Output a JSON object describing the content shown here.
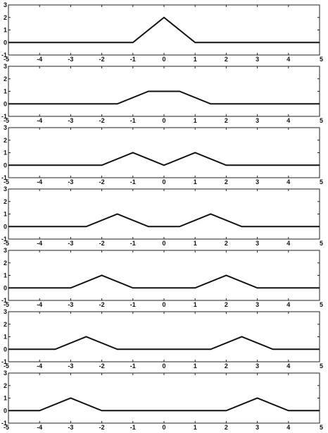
{
  "chart_data": [
    {
      "type": "line",
      "title": "",
      "xlabel": "",
      "ylabel": "",
      "xlim": [
        -5,
        5
      ],
      "ylim": [
        -1,
        3
      ],
      "x_ticks": [
        "-5",
        "-4",
        "-3",
        "-2",
        "-1",
        "0",
        "1",
        "2",
        "3",
        "4",
        "5"
      ],
      "y_ticks": [
        "-1",
        "0",
        "1",
        "2",
        "3"
      ],
      "grid": false,
      "series": [
        {
          "x": [
            -5,
            -1,
            0,
            1,
            5
          ],
          "y": [
            0,
            0,
            2,
            0,
            0
          ]
        }
      ]
    },
    {
      "type": "line",
      "title": "",
      "xlabel": "",
      "ylabel": "",
      "xlim": [
        -5,
        5
      ],
      "ylim": [
        -1,
        3
      ],
      "x_ticks": [
        "-5",
        "-4",
        "-3",
        "-2",
        "-1",
        "0",
        "1",
        "2",
        "3",
        "4",
        "5"
      ],
      "y_ticks": [
        "-1",
        "0",
        "1",
        "2",
        "3"
      ],
      "grid": false,
      "series": [
        {
          "x": [
            -5,
            -1.5,
            -0.5,
            0.5,
            1.5,
            5
          ],
          "y": [
            0,
            0,
            1,
            1,
            0,
            0
          ]
        }
      ]
    },
    {
      "type": "line",
      "title": "",
      "xlabel": "",
      "ylabel": "",
      "xlim": [
        -5,
        5
      ],
      "ylim": [
        -1,
        3
      ],
      "x_ticks": [
        "-5",
        "-4",
        "-3",
        "-2",
        "-1",
        "0",
        "1",
        "2",
        "3",
        "4",
        "5"
      ],
      "y_ticks": [
        "-1",
        "0",
        "1",
        "2",
        "3"
      ],
      "grid": false,
      "series": [
        {
          "x": [
            -5,
            -2,
            -1,
            0,
            1,
            2,
            5
          ],
          "y": [
            0,
            0,
            1,
            0,
            1,
            0,
            0
          ]
        }
      ]
    },
    {
      "type": "line",
      "title": "",
      "xlabel": "",
      "ylabel": "",
      "xlim": [
        -5,
        5
      ],
      "ylim": [
        -1,
        3
      ],
      "x_ticks": [
        "-5",
        "-4",
        "-3",
        "-2",
        "-1",
        "0",
        "1",
        "2",
        "3",
        "4",
        "5"
      ],
      "y_ticks": [
        "-1",
        "0",
        "1",
        "2",
        "3"
      ],
      "grid": false,
      "series": [
        {
          "x": [
            -5,
            -2.5,
            -1.5,
            -0.5,
            0.5,
            1.5,
            2.5,
            5
          ],
          "y": [
            0,
            0,
            1,
            0,
            0,
            1,
            0,
            0
          ]
        }
      ]
    },
    {
      "type": "line",
      "title": "",
      "xlabel": "",
      "ylabel": "",
      "xlim": [
        -5,
        5
      ],
      "ylim": [
        -1,
        3
      ],
      "x_ticks": [
        "-5",
        "-4",
        "-3",
        "-2",
        "-1",
        "0",
        "1",
        "2",
        "3",
        "4",
        "5"
      ],
      "y_ticks": [
        "-1",
        "0",
        "1",
        "2",
        "3"
      ],
      "grid": false,
      "series": [
        {
          "x": [
            -5,
            -3,
            -2,
            -1,
            1,
            2,
            3,
            5
          ],
          "y": [
            0,
            0,
            1,
            0,
            0,
            1,
            0,
            0
          ]
        }
      ]
    },
    {
      "type": "line",
      "title": "",
      "xlabel": "",
      "ylabel": "",
      "xlim": [
        -5,
        5
      ],
      "ylim": [
        -1,
        3
      ],
      "x_ticks": [
        "-5",
        "-4",
        "-3",
        "-2",
        "-1",
        "0",
        "1",
        "2",
        "3",
        "4",
        "5"
      ],
      "y_ticks": [
        "-1",
        "0",
        "1",
        "2",
        "3"
      ],
      "grid": false,
      "series": [
        {
          "x": [
            -5,
            -3.5,
            -2.5,
            -1.5,
            1.5,
            2.5,
            3.5,
            5
          ],
          "y": [
            0,
            0,
            1,
            0,
            0,
            1,
            0,
            0
          ]
        }
      ]
    },
    {
      "type": "line",
      "title": "",
      "xlabel": "",
      "ylabel": "",
      "xlim": [
        -5,
        5
      ],
      "ylim": [
        -1,
        3
      ],
      "x_ticks": [
        "-5",
        "-4",
        "-3",
        "-2",
        "-1",
        "0",
        "1",
        "2",
        "3",
        "4",
        "5"
      ],
      "y_ticks": [
        "-1",
        "0",
        "1",
        "2",
        "3"
      ],
      "grid": false,
      "series": [
        {
          "x": [
            -5,
            -4,
            -3,
            -2,
            2,
            3,
            4,
            5
          ],
          "y": [
            0,
            0,
            1,
            0,
            0,
            1,
            0,
            0
          ]
        }
      ]
    }
  ]
}
